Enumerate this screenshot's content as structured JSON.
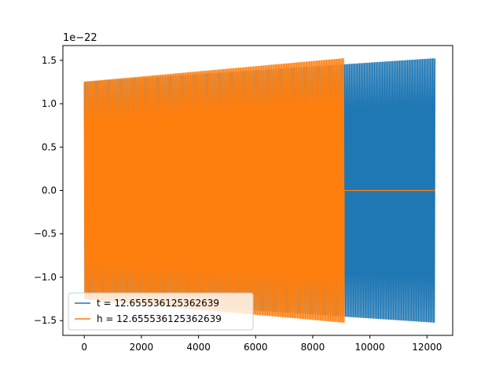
{
  "chart_data": {
    "type": "line",
    "title": "",
    "xlabel": "",
    "ylabel": "",
    "offset_text": "1e−22",
    "xlim": [
      -750,
      12900
    ],
    "ylim": [
      -1.67,
      1.67
    ],
    "xticks": [
      0,
      2000,
      4000,
      6000,
      8000,
      10000,
      12000
    ],
    "xtick_labels": [
      "0",
      "2000",
      "4000",
      "6000",
      "8000",
      "10000",
      "12000"
    ],
    "yticks": [
      -1.5,
      -1.0,
      -0.5,
      0.0,
      0.5,
      1.0,
      1.5
    ],
    "ytick_labels": [
      "−1.5",
      "−1.0",
      "−0.5",
      "0.0",
      "0.5",
      "1.0",
      "1.5"
    ],
    "grid": false,
    "legend_position": "lower-left",
    "series": [
      {
        "name": "t = 12.655536125362639",
        "color": "#1f77b4",
        "x_start": 0,
        "x_end": 12288,
        "envelope_start": 1.25,
        "envelope_end": 1.52
      },
      {
        "name": "h = 12.655536125362639",
        "color": "#ff7f0e",
        "x_start": 0,
        "x_end": 9100,
        "zero_until": 12288,
        "envelope_start": 1.25,
        "envelope_end": 1.52
      }
    ]
  }
}
